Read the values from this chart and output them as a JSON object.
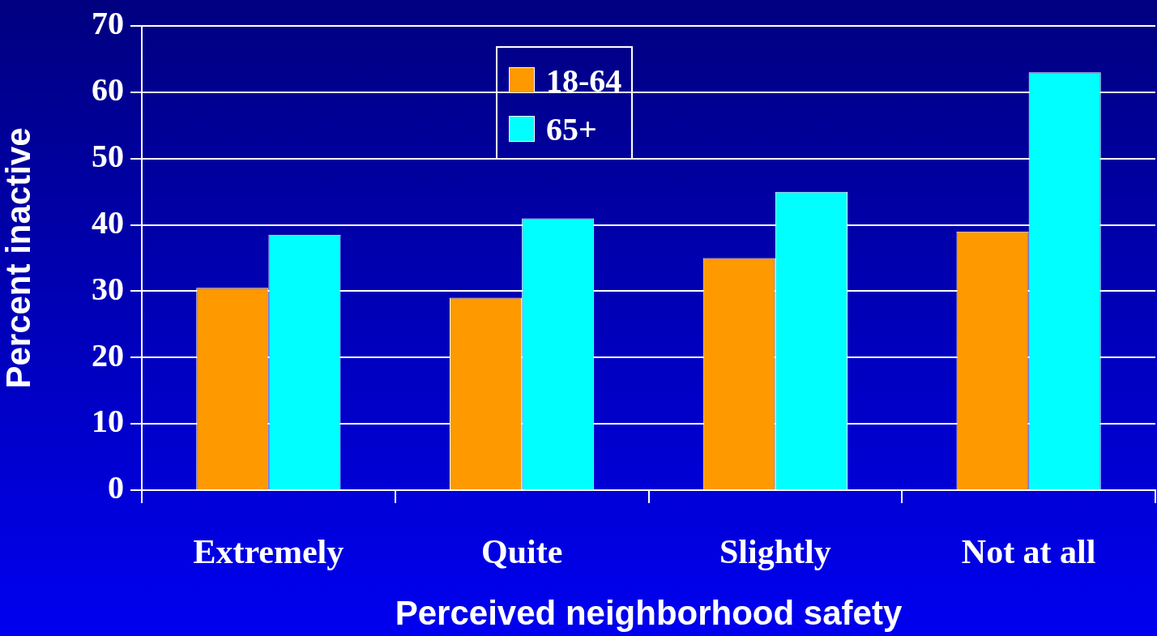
{
  "chart_data": {
    "type": "bar",
    "xlabel": "Perceived neighborhood safety",
    "ylabel": "Percent inactive",
    "categories": [
      "Extremely",
      "Quite",
      "Slightly",
      "Not at all"
    ],
    "series": [
      {
        "name": "18-64",
        "color": "#ff9900",
        "values": [
          30.5,
          29,
          35,
          39
        ]
      },
      {
        "name": "65+",
        "color": "#00ffff",
        "values": [
          38.5,
          41,
          45,
          63
        ]
      }
    ],
    "ylim": [
      0,
      70
    ],
    "yticks": [
      0,
      10,
      20,
      30,
      40,
      50,
      60,
      70
    ],
    "grid": "y",
    "legend": "top"
  }
}
